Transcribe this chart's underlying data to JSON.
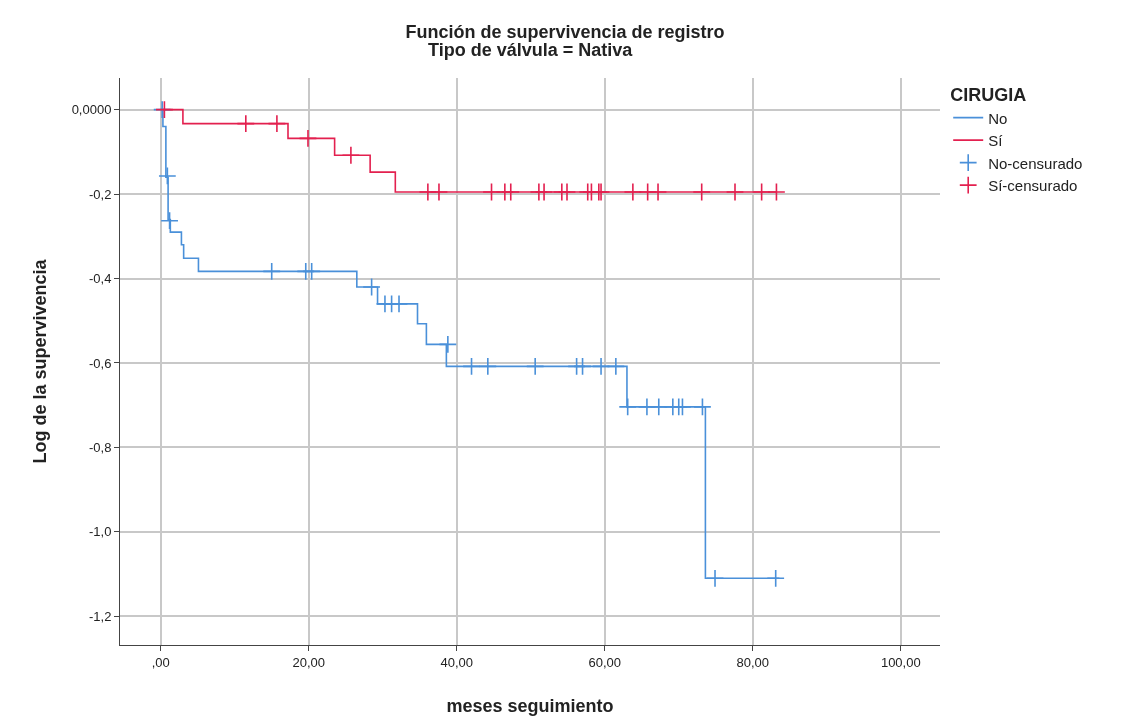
{
  "chart_data": {
    "type": "step",
    "title": "Función de supervivencia de registro",
    "subtitle": "Tipo de válvula = Nativa",
    "xlabel": "meses seguimiento",
    "ylabel": "Log de la supervivencia",
    "legend_title": "CIRUGIA",
    "series": [
      {
        "name": "No",
        "color": "#4a90d9",
        "x": [
          0,
          0.3,
          0.7,
          1.0,
          1.3,
          2.8,
          3.1,
          5.1,
          26.5,
          29.3,
          34.7,
          35.9,
          38.6,
          63.0,
          73.6,
          83.6
        ],
        "values": [
          0,
          -0.04,
          -0.16,
          -0.26,
          -0.29,
          -0.32,
          -0.352,
          -0.383,
          -0.42,
          -0.46,
          -0.507,
          -0.556,
          -0.608,
          -0.704,
          -1.11,
          -1.11
        ]
      },
      {
        "name": "Sí",
        "color": "#e3204f",
        "x": [
          0,
          3.0,
          17.2,
          23.5,
          28.3,
          31.7,
          83.2
        ],
        "values": [
          0,
          -0.033,
          -0.068,
          -0.108,
          -0.148,
          -0.195,
          -0.195
        ]
      },
      {
        "name": "No-censurado",
        "color": "#4a90d9",
        "type": "scatter",
        "marker": "cross",
        "x": [
          0.2,
          0.9,
          1.2,
          15.0,
          19.6,
          20.4,
          28.5,
          30.3,
          31.2,
          32.2,
          38.8,
          42.0,
          44.2,
          50.6,
          56.2,
          57.0,
          59.5,
          61.5,
          63.1,
          65.7,
          67.3,
          69.2,
          70.0,
          70.5,
          73.2,
          74.9,
          83.1
        ],
        "values": [
          0,
          -0.157,
          -0.263,
          -0.383,
          -0.383,
          -0.383,
          -0.42,
          -0.46,
          -0.46,
          -0.46,
          -0.556,
          -0.608,
          -0.608,
          -0.608,
          -0.608,
          -0.608,
          -0.608,
          -0.608,
          -0.704,
          -0.704,
          -0.704,
          -0.704,
          -0.704,
          -0.704,
          -0.704,
          -1.11,
          -1.11
        ]
      },
      {
        "name": "Sí-censurado",
        "color": "#e3204f",
        "type": "scatter",
        "marker": "cross",
        "x": [
          0.5,
          11.5,
          15.7,
          19.9,
          25.7,
          36.1,
          37.6,
          44.7,
          46.5,
          47.3,
          51.1,
          51.8,
          54.2,
          54.9,
          57.7,
          58.2,
          59.2,
          59.5,
          63.8,
          65.8,
          67.2,
          73.1,
          77.6,
          81.2,
          83.2
        ],
        "values": [
          0,
          -0.033,
          -0.033,
          -0.068,
          -0.108,
          -0.195,
          -0.195,
          -0.195,
          -0.195,
          -0.195,
          -0.195,
          -0.195,
          -0.195,
          -0.195,
          -0.195,
          -0.195,
          -0.195,
          -0.195,
          -0.195,
          -0.195,
          -0.195,
          -0.195,
          -0.195,
          -0.195,
          -0.195
        ]
      }
    ],
    "xlim": [
      -5.5,
      105.3
    ],
    "ylim": [
      -1.268,
      0.075
    ],
    "xticks": [
      {
        "value": 0,
        "label": ",00"
      },
      {
        "value": 20,
        "label": "20,00"
      },
      {
        "value": 40,
        "label": "40,00"
      },
      {
        "value": 60,
        "label": "60,00"
      },
      {
        "value": 80,
        "label": "80,00"
      },
      {
        "value": 100,
        "label": "100,00"
      }
    ],
    "yticks": [
      {
        "value": 0,
        "label": "0,0000"
      },
      {
        "value": -0.2,
        "label": "-0,2"
      },
      {
        "value": -0.4,
        "label": "-0,4"
      },
      {
        "value": -0.6,
        "label": "-0,6"
      },
      {
        "value": -0.8,
        "label": "-0,8"
      },
      {
        "value": -1.0,
        "label": "-1,0"
      },
      {
        "value": -1.2,
        "label": "-1,2"
      }
    ],
    "grid": true,
    "legend": "top right",
    "line_style": "solid"
  }
}
